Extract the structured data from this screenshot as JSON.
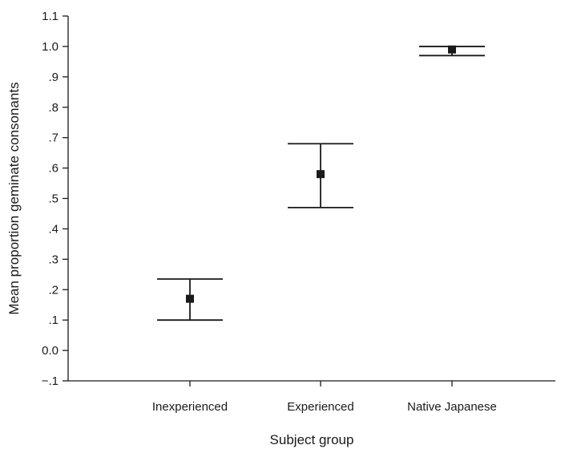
{
  "chart_data": {
    "type": "scatter",
    "xlabel": "Subject group",
    "ylabel": "Mean proportion geminate consonants",
    "ylim": [
      -0.1,
      1.1
    ],
    "yticks": [
      {
        "value": -0.1,
        "label": "−.1"
      },
      {
        "value": 0.0,
        "label": "0.0"
      },
      {
        "value": 0.1,
        "label": ".1"
      },
      {
        "value": 0.2,
        "label": ".2"
      },
      {
        "value": 0.3,
        "label": ".3"
      },
      {
        "value": 0.4,
        "label": ".4"
      },
      {
        "value": 0.5,
        "label": ".5"
      },
      {
        "value": 0.6,
        "label": ".6"
      },
      {
        "value": 0.7,
        "label": ".7"
      },
      {
        "value": 0.8,
        "label": ".8"
      },
      {
        "value": 0.9,
        "label": ".9"
      },
      {
        "value": 1.0,
        "label": "1.0"
      },
      {
        "value": 1.1,
        "label": "1.1"
      }
    ],
    "categories": [
      "Inexperienced",
      "Experienced",
      "Native Japanese"
    ],
    "points": [
      {
        "category": "Inexperienced",
        "mean": 0.17,
        "lower": 0.1,
        "upper": 0.235
      },
      {
        "category": "Experienced",
        "mean": 0.58,
        "lower": 0.47,
        "upper": 0.68
      },
      {
        "category": "Native Japanese",
        "mean": 0.99,
        "lower": 0.97,
        "upper": 1.0
      }
    ],
    "grid": false,
    "colors": {
      "marks": "#1a1a1a",
      "background": "#ffffff"
    }
  }
}
